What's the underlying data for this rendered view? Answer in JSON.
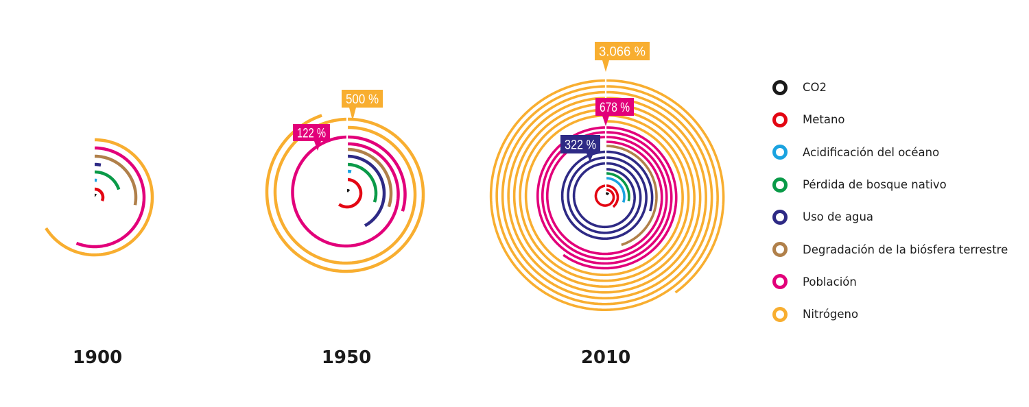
{
  "chart_data": {
    "type": "spiral",
    "title": "",
    "unit_note": "Each track winds clockwise from 12 o'clock; one full turn is one revolution of the spiral",
    "series_meta": [
      {
        "key": "co2",
        "name": "CO2",
        "color": "#1a1a1a"
      },
      {
        "key": "metano",
        "name": "Metano",
        "color": "#e30613"
      },
      {
        "key": "acidificacion",
        "name": "Acidificación del océano",
        "color": "#1ba3e0"
      },
      {
        "key": "bosque",
        "name": "Pérdida de bosque nativo",
        "color": "#0a9a48"
      },
      {
        "key": "agua",
        "name": "Uso de agua",
        "color": "#2e2a85"
      },
      {
        "key": "biosfera",
        "name": "Degradación de la biósfera terrestre",
        "color": "#b0804a"
      },
      {
        "key": "poblacion",
        "name": "Población",
        "color": "#e2007a"
      },
      {
        "key": "nitrogeno",
        "name": "Nitrógeno",
        "color": "#f8ae30"
      }
    ],
    "panels": [
      {
        "year": "1900",
        "turns": {
          "co2": 0.1,
          "metano": 0.32,
          "acidificacion": 0.02,
          "bosque": 0.2,
          "agua": 0.03,
          "biosfera": 0.28,
          "poblacion": 0.56,
          "nitrogeno": 0.66
        },
        "callouts": []
      },
      {
        "year": "1950",
        "turns": {
          "co2": 0.12,
          "metano": 0.6,
          "acidificacion": 0.03,
          "bosque": 0.3,
          "agua": 0.42,
          "biosfera": 0.3,
          "poblacion": 1.3,
          "nitrogeno": 1.95
        },
        "callouts": [
          {
            "series": "nitrogeno",
            "label": "500 %"
          },
          {
            "series": "poblacion",
            "label": "122 %"
          }
        ]
      },
      {
        "year": "2010",
        "turns": {
          "co2": 0.14,
          "metano": 1.4,
          "acidificacion": 0.3,
          "bosque": 0.28,
          "agua": 3.3,
          "biosfera": 0.45,
          "poblacion": 3.6,
          "nitrogeno": 7.4
        },
        "callouts": [
          {
            "series": "nitrogeno",
            "label": "3.066 %"
          },
          {
            "series": "poblacion",
            "label": "678 %"
          },
          {
            "series": "agua",
            "label": "322 %"
          }
        ]
      }
    ],
    "legend_position": "right"
  },
  "legend": {
    "items": [
      {
        "label": "CO2",
        "color": "#1a1a1a"
      },
      {
        "label": "Metano",
        "color": "#e30613"
      },
      {
        "label": "Acidificación del océano",
        "color": "#1ba3e0"
      },
      {
        "label": "Pérdida de bosque nativo",
        "color": "#0a9a48"
      },
      {
        "label": "Uso de agua",
        "color": "#2e2a85"
      },
      {
        "label": "Degradación de la biósfera terrestre",
        "color": "#b0804a"
      },
      {
        "label": "Población",
        "color": "#e2007a"
      },
      {
        "label": "Nitrógeno",
        "color": "#f8ae30"
      }
    ]
  }
}
